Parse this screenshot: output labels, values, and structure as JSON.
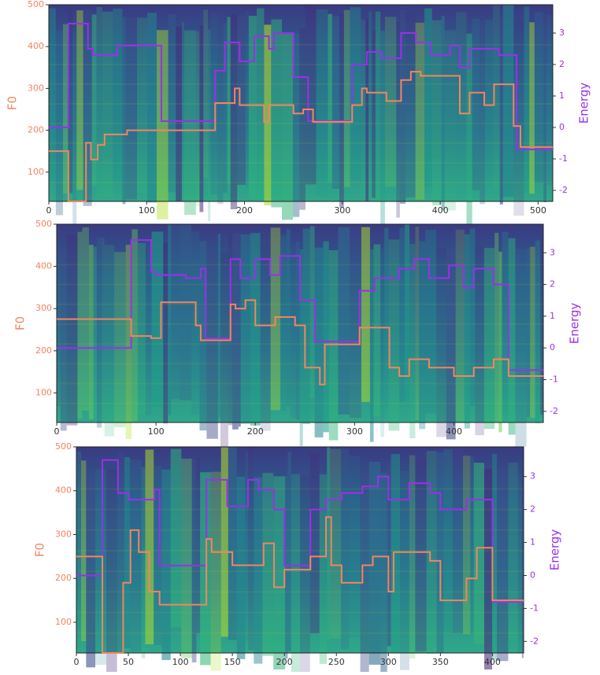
{
  "chart_data": [
    {
      "type": "line",
      "step": "post",
      "xlim": [
        0,
        515
      ],
      "ylim": [
        30,
        500
      ],
      "y2lim": [
        -2.35,
        3.9
      ],
      "xticks": [
        0,
        100,
        200,
        300,
        400,
        500
      ],
      "yticks": [
        100,
        200,
        300,
        400,
        500
      ],
      "y2ticks": [
        -2,
        -1,
        0,
        1,
        2,
        3
      ],
      "series": [
        {
          "name": "F0",
          "color": "#f4845f",
          "x": [
            0,
            20,
            38,
            43,
            50,
            57,
            80,
            170,
            190,
            195,
            200,
            220,
            225,
            250,
            260,
            270,
            310,
            320,
            325,
            345,
            360,
            370,
            380,
            420,
            430,
            445,
            455,
            475,
            482,
            515
          ],
          "values": [
            150,
            30,
            170,
            130,
            165,
            190,
            200,
            265,
            300,
            260,
            260,
            220,
            260,
            240,
            250,
            220,
            260,
            300,
            290,
            270,
            320,
            340,
            330,
            240,
            290,
            260,
            310,
            210,
            160,
            160
          ]
        },
        {
          "name": "Energy",
          "color": "#9b30e8",
          "axis": "y2",
          "x": [
            0,
            20,
            40,
            45,
            70,
            115,
            170,
            180,
            195,
            210,
            225,
            230,
            250,
            265,
            310,
            325,
            340,
            360,
            375,
            390,
            410,
            420,
            430,
            460,
            478,
            515
          ],
          "values": [
            0,
            3.3,
            2.5,
            2.3,
            2.6,
            0.2,
            1.8,
            2.7,
            2.1,
            2.9,
            2.5,
            3.0,
            1.6,
            0.2,
            2.0,
            2.4,
            2.2,
            3.0,
            2.7,
            2.3,
            2.6,
            1.9,
            2.5,
            2.3,
            -0.7,
            -0.7
          ]
        }
      ]
    },
    {
      "type": "line",
      "step": "post",
      "xlim": [
        0,
        490
      ],
      "ylim": [
        30,
        500
      ],
      "y2lim": [
        -2.35,
        3.9
      ],
      "xticks": [
        0,
        100,
        200,
        300,
        400
      ],
      "yticks": [
        100,
        200,
        300,
        400,
        500
      ],
      "y2ticks": [
        -2,
        -1,
        0,
        1,
        2,
        3
      ],
      "series": [
        {
          "name": "F0",
          "color": "#f4845f",
          "x": [
            0,
            75,
            95,
            105,
            140,
            145,
            175,
            180,
            190,
            200,
            220,
            240,
            250,
            265,
            270,
            305,
            335,
            345,
            355,
            375,
            400,
            420,
            440,
            455,
            490
          ],
          "values": [
            275,
            235,
            230,
            315,
            260,
            225,
            310,
            300,
            320,
            260,
            280,
            260,
            160,
            120,
            215,
            255,
            160,
            140,
            180,
            160,
            140,
            160,
            180,
            140,
            140
          ]
        },
        {
          "name": "Energy",
          "color": "#9b30e8",
          "axis": "y2",
          "x": [
            0,
            75,
            95,
            100,
            130,
            145,
            150,
            175,
            185,
            200,
            215,
            225,
            245,
            260,
            305,
            320,
            345,
            360,
            375,
            395,
            410,
            420,
            440,
            455,
            490
          ],
          "values": [
            0,
            3.4,
            2.4,
            2.3,
            2.2,
            2.5,
            0.3,
            2.8,
            2.2,
            2.8,
            2.3,
            2.9,
            1.5,
            0.2,
            1.8,
            2.2,
            2.5,
            2.8,
            2.2,
            2.6,
            1.9,
            2.5,
            2.0,
            -0.7,
            -0.7
          ]
        }
      ]
    },
    {
      "type": "line",
      "step": "post",
      "xlim": [
        0,
        430
      ],
      "ylim": [
        30,
        500
      ],
      "y2lim": [
        -2.35,
        3.9
      ],
      "xticks": [
        0,
        50,
        100,
        150,
        200,
        250,
        300,
        350,
        400
      ],
      "yticks": [
        100,
        200,
        300,
        400,
        500
      ],
      "y2ticks": [
        -2,
        -1,
        0,
        1,
        2,
        3
      ],
      "series": [
        {
          "name": "F0",
          "color": "#f4845f",
          "x": [
            0,
            25,
            45,
            52,
            60,
            70,
            80,
            125,
            130,
            150,
            180,
            190,
            200,
            225,
            240,
            245,
            255,
            275,
            285,
            300,
            305,
            340,
            350,
            375,
            385,
            400,
            430
          ],
          "values": [
            250,
            30,
            190,
            310,
            260,
            170,
            140,
            290,
            260,
            230,
            280,
            180,
            220,
            250,
            340,
            230,
            190,
            230,
            250,
            170,
            260,
            240,
            150,
            200,
            270,
            150,
            150
          ]
        },
        {
          "name": "Energy",
          "color": "#9b30e8",
          "axis": "y2",
          "x": [
            0,
            25,
            40,
            50,
            75,
            80,
            125,
            145,
            165,
            175,
            190,
            200,
            225,
            240,
            255,
            275,
            290,
            300,
            320,
            340,
            350,
            375,
            400,
            430
          ],
          "values": [
            0,
            3.5,
            2.5,
            2.3,
            2.6,
            0.3,
            2.9,
            2.1,
            2.9,
            2.6,
            2.0,
            0.3,
            2.0,
            2.3,
            2.5,
            2.7,
            3.0,
            2.3,
            2.8,
            2.5,
            2.0,
            2.3,
            -0.8,
            -0.8
          ]
        }
      ]
    }
  ]
}
